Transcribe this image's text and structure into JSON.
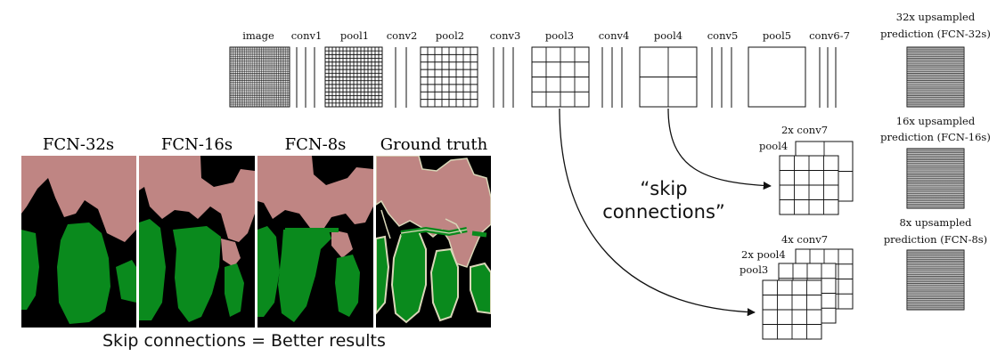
{
  "network": {
    "stage_labels": [
      "image",
      "conv1",
      "pool1",
      "conv2",
      "pool2",
      "conv3",
      "pool3",
      "conv4",
      "pool4",
      "conv5",
      "pool5",
      "conv6-7"
    ],
    "predictions": [
      {
        "line1": "32x upsampled",
        "line2": "prediction (FCN-32s)"
      },
      {
        "line1": "16x upsampled",
        "line2": "prediction (FCN-16s)"
      },
      {
        "line1": "8x upsampled",
        "line2": "prediction (FCN-8s)"
      }
    ],
    "fuse_16": {
      "title": "2x conv7",
      "sub": "pool4"
    },
    "fuse_8": {
      "title": "4x conv7",
      "sub1": "2x pool4",
      "sub2": "pool3"
    },
    "skip_label_line1": "“skip",
    "skip_label_line2": "connections”"
  },
  "results": {
    "titles": [
      "FCN-32s",
      "FCN-16s",
      "FCN-8s",
      "Ground truth"
    ],
    "caption": "Skip connections = Better results"
  },
  "colors": {
    "person": "#bf8583",
    "bicycle": "#0a8a1d",
    "background": "#000000",
    "outline": "#d9d7b8"
  }
}
